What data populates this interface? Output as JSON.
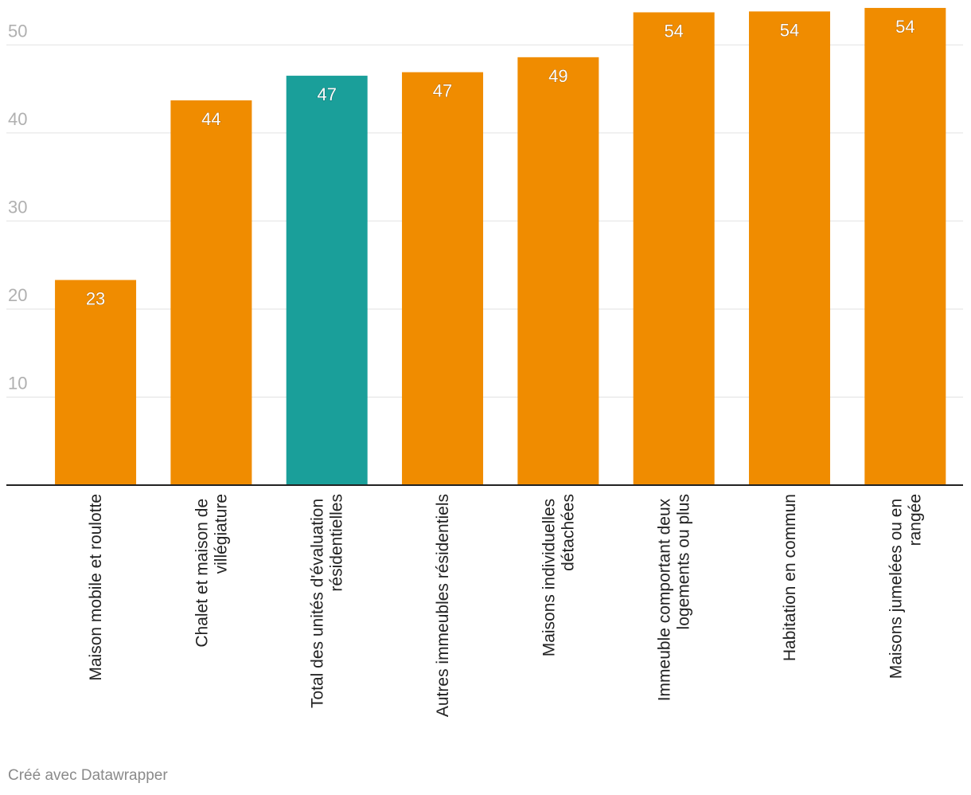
{
  "chart_data": {
    "type": "bar",
    "categories": [
      "Maison mobile et roulotte",
      "Chalet et maison de villégiature",
      "Total des unités d'évaluation résidentielles",
      "Autres immeubles résidentiels",
      "Maisons individuelles détachées",
      "Immeuble comportant deux logements ou plus",
      "Habitation en commun",
      "Maisons jumelées ou en rangée"
    ],
    "values": [
      23.3,
      43.7,
      46.5,
      46.9,
      48.6,
      53.7,
      53.8,
      54.2
    ],
    "value_labels": [
      "23",
      "44",
      "47",
      "47",
      "49",
      "54",
      "54",
      "54"
    ],
    "colors": [
      "#f08c00",
      "#f08c00",
      "#1a9f9a",
      "#f08c00",
      "#f08c00",
      "#f08c00",
      "#f08c00",
      "#f08c00"
    ],
    "ylim": [
      0,
      55.1
    ],
    "yticks": [
      10,
      20,
      30,
      40,
      50
    ],
    "grid": true,
    "footer": "Créé avec Datawrapper"
  }
}
